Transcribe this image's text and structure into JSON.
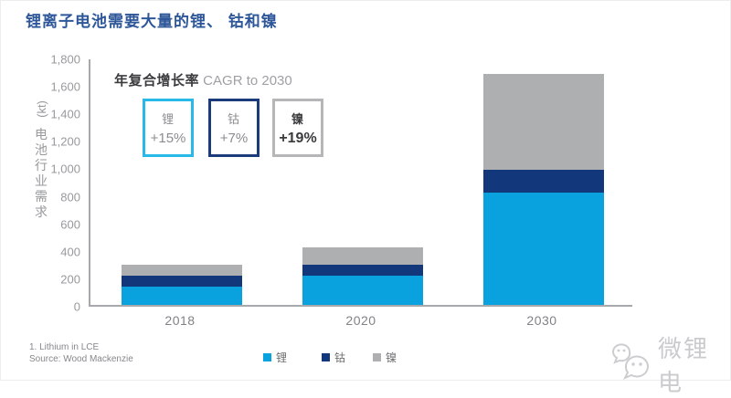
{
  "page": {
    "title": "锂离子电池需要大量的锂、 钴和镍"
  },
  "colors": {
    "title_text": "#2E5799",
    "axis_line": "#A6A8AB",
    "tick_text": "#97999C",
    "category_text": "#808285",
    "footnote_text": "#85878A"
  },
  "cagr": {
    "heading_zh": "年复合增长率",
    "heading_en": " CAGR to 2030",
    "boxes": [
      {
        "label": "锂",
        "value": "+15%",
        "border_color": "#29B9E8",
        "text_color": "#8A8C8F",
        "bold": false
      },
      {
        "label": "钴",
        "value": "+7%",
        "border_color": "#1A3C7A",
        "text_color": "#8A8C8F",
        "bold": false
      },
      {
        "label": "镍",
        "value": "+19%",
        "border_color": "#B5B6B8",
        "text_color": "#3A3A3C",
        "bold": true
      }
    ]
  },
  "chart_data": {
    "type": "bar",
    "stacked": true,
    "title": "锂离子电池需要大量的锂、 钴和镍",
    "categories": [
      "2018",
      "2020",
      "2030"
    ],
    "series": [
      {
        "name": "锂",
        "color": "#0AA2DE",
        "values": [
          130,
          215,
          815
        ]
      },
      {
        "name": "钴",
        "color": "#12387B",
        "values": [
          85,
          80,
          165
        ]
      },
      {
        "name": "镍",
        "color": "#ADAFB1",
        "values": [
          80,
          125,
          700
        ]
      }
    ],
    "totals": [
      295,
      420,
      1680
    ],
    "ylabel_unit": "(kt)",
    "ylabel": "电池行业需求",
    "ylim": [
      0,
      1800
    ],
    "ytick_step": 200,
    "ytick_labels": [
      "0",
      "200",
      "400",
      "600",
      "800",
      "1,000",
      "1,200",
      "1,400",
      "1,600",
      "1,800"
    ],
    "grid": false,
    "legend_position": "bottom"
  },
  "legend": {
    "items": [
      {
        "label": "锂",
        "color": "#0AA2DE"
      },
      {
        "label": "钴",
        "color": "#12387B"
      },
      {
        "label": "镍",
        "color": "#ADAFB1"
      }
    ]
  },
  "footnotes": {
    "line1": "1. Lithium in LCE",
    "line2": "Source: Wood Mackenzie"
  },
  "watermark": {
    "text": "微锂电",
    "icon": "wechat-icon"
  }
}
